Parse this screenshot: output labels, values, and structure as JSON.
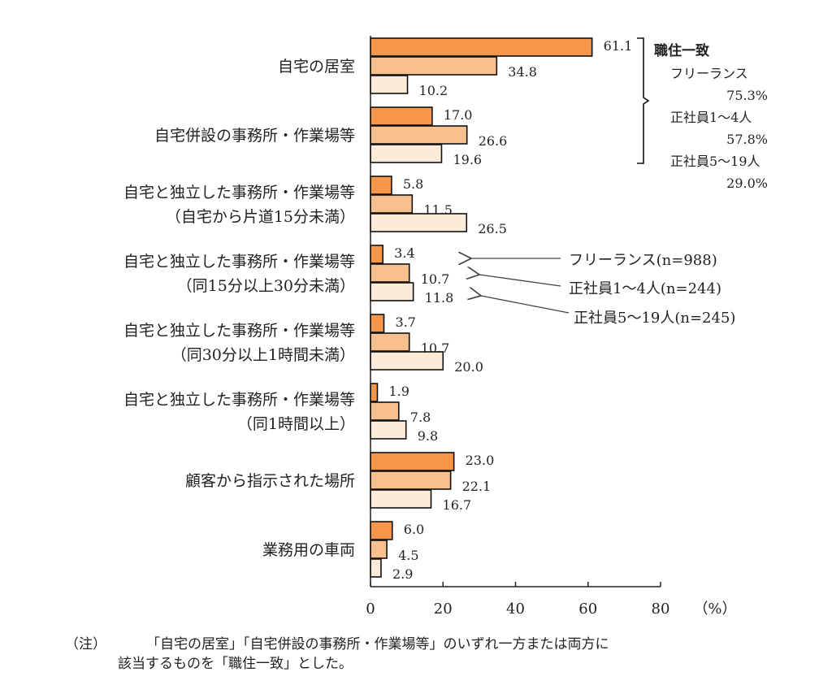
{
  "chart_data": {
    "type": "bar",
    "orientation": "horizontal",
    "categories": [
      [
        "自宅の居室"
      ],
      [
        "自宅併設の事務所・作業場等"
      ],
      [
        "自宅と独立した事務所・作業場等",
        "（自宅から片道15分未満）"
      ],
      [
        "自宅と独立した事務所・作業場等",
        "（同15分以上30分未満）"
      ],
      [
        "自宅と独立した事務所・作業場等",
        "（同30分以上1時間未満）"
      ],
      [
        "自宅と独立した事務所・作業場等",
        "（同1時間以上）"
      ],
      [
        "顧客から指示された場所"
      ],
      [
        "業務用の車両"
      ]
    ],
    "series": [
      {
        "name": "フリーランス(n=988)",
        "color": "#F5964A",
        "values": [
          61.1,
          17.0,
          5.8,
          3.4,
          3.7,
          1.9,
          23.0,
          6.0
        ]
      },
      {
        "name": "正社員1～4人(n=244)",
        "color": "#F9C08F",
        "values": [
          34.8,
          26.6,
          11.5,
          10.7,
          10.7,
          7.8,
          22.1,
          4.5
        ]
      },
      {
        "name": "正社員5～19人(n=245)",
        "color": "#FDEBDA",
        "values": [
          10.2,
          19.6,
          26.5,
          11.8,
          20.0,
          9.8,
          16.7,
          2.9
        ]
      }
    ],
    "xlim": [
      0,
      80
    ],
    "xticks": [
      "0",
      "20",
      "40",
      "60",
      "80"
    ],
    "xlabel": "（%）",
    "legend_placement": "right-middle (arrows)",
    "annotation": {
      "title": "職住一致",
      "lines": [
        "フリーランス",
        "75.3%",
        "正社員1～4人",
        "57.8%",
        "正社員5～19人",
        "29.0%"
      ]
    }
  },
  "note": {
    "label": "（注）",
    "line1": "「自宅の居室」「自宅併設の事務所・作業場等」のいずれ一方または両方に",
    "line2": "該当するものを「職住一致」とした。"
  }
}
